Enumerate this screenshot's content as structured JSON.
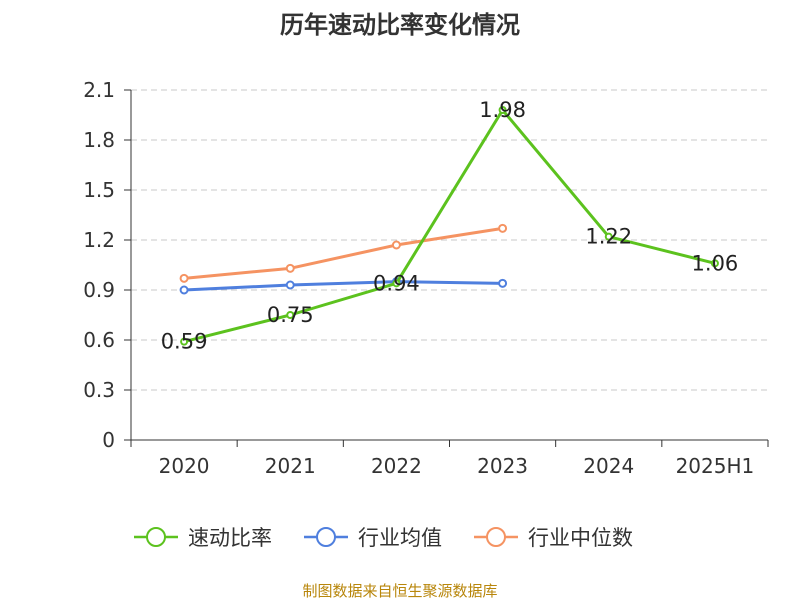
{
  "chart_data": {
    "type": "line",
    "title": "历年速动比率变化情况",
    "categories": [
      "2020",
      "2021",
      "2022",
      "2023",
      "2024",
      "2025H1"
    ],
    "ylim": [
      0,
      2.1
    ],
    "yticks": [
      "0",
      "0.3",
      "0.6",
      "0.9",
      "1.2",
      "1.5",
      "1.8",
      "2.1"
    ],
    "grid": true,
    "legend_position": "bottom",
    "series": [
      {
        "name": "速动比率",
        "color": "#5cc21e",
        "values": [
          0.59,
          0.75,
          0.94,
          1.98,
          1.22,
          1.06
        ],
        "labels": [
          "0.59",
          "0.75",
          "0.94",
          "1.98",
          "1.22",
          "1.06"
        ],
        "show_labels": true
      },
      {
        "name": "行业均值",
        "color": "#4f7fde",
        "values": [
          0.9,
          0.93,
          0.95,
          0.94,
          null,
          null
        ],
        "show_labels": false
      },
      {
        "name": "行业中位数",
        "color": "#f59362",
        "values": [
          0.97,
          1.03,
          1.17,
          1.27,
          null,
          null
        ],
        "show_labels": false
      }
    ],
    "source": "制图数据来自恒生聚源数据库"
  }
}
